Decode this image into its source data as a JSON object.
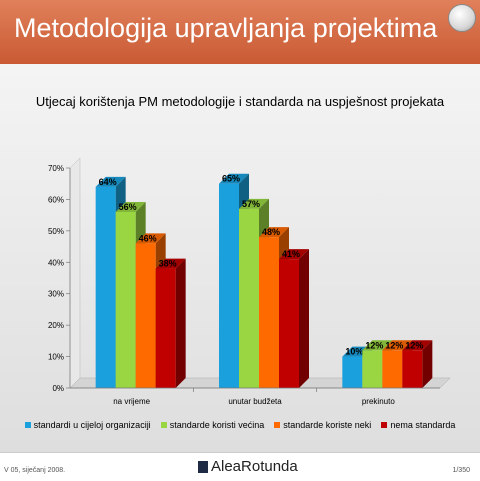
{
  "slide": {
    "title": "Metodologija upravljanja projektima"
  },
  "footer": {
    "left": "V 05, siječanj 2008.",
    "logo": "AleaRotunda",
    "page": "1/350"
  },
  "colors": {
    "series": [
      "#1aa0dc",
      "#99d642",
      "#ff6a00",
      "#c00000"
    ]
  },
  "chart_data": {
    "type": "bar",
    "title": "Utjecaj korištenja PM metodologije i standarda na uspješnost projekata",
    "categories": [
      "na vrijeme",
      "unutar budžeta",
      "prekinuto"
    ],
    "series": [
      {
        "name": "standardi u cijeloj organizaciji",
        "values": [
          64,
          65,
          10
        ],
        "labels": [
          "64%",
          "65%",
          "10%"
        ]
      },
      {
        "name": "standarde koristi većina",
        "values": [
          56,
          57,
          12
        ],
        "labels": [
          "56%",
          "57%",
          "12%"
        ]
      },
      {
        "name": "standarde koriste neki",
        "values": [
          46,
          48,
          12
        ],
        "labels": [
          "46%",
          "48%",
          "12%"
        ]
      },
      {
        "name": "nema standarda",
        "values": [
          38,
          41,
          12
        ],
        "labels": [
          "38%",
          "41%",
          "12%"
        ]
      }
    ],
    "yticks": [
      "0%",
      "10%",
      "20%",
      "30%",
      "40%",
      "50%",
      "60%",
      "70%"
    ],
    "ylim": [
      0,
      70
    ],
    "legend": "bottom",
    "grid": false
  }
}
